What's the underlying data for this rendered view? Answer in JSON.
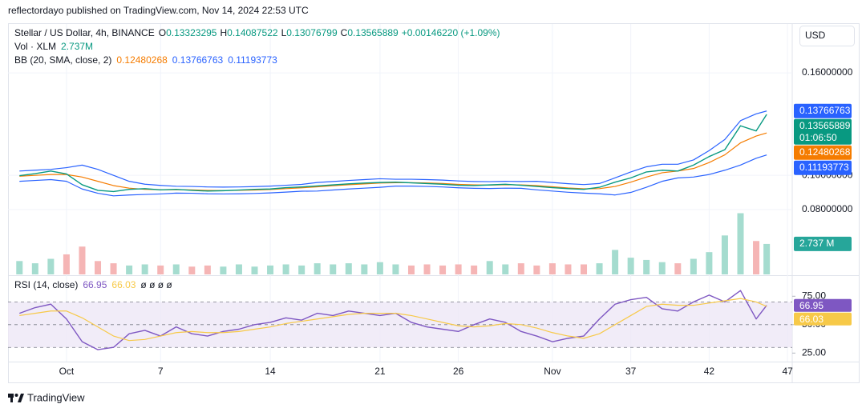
{
  "header": "reflectordayo published on TradingView.com, Nov 14, 2024 22:53 UTC",
  "footer": "TradingView",
  "currency": "USD",
  "countdown": "01:06:50",
  "chart_data": [
    {
      "type": "line",
      "title": "Stellar / US Dollar, 4h, BINANCE",
      "ohlc": [
        {
          "label": "O",
          "value": 0.13323295
        },
        {
          "label": "H",
          "value": 0.14087522
        },
        {
          "label": "L",
          "value": 0.13076799
        },
        {
          "label": "C",
          "value": 0.13565889
        }
      ],
      "change": "+0.00146220 (+1.09%)",
      "grid": true,
      "x": [
        -2,
        -1,
        0,
        1,
        2,
        3,
        4,
        5,
        6,
        7,
        8,
        9,
        10,
        11,
        12,
        13,
        14,
        15,
        16,
        17,
        18,
        19,
        20,
        21,
        22,
        23,
        24,
        25,
        26,
        27,
        28,
        29,
        30,
        31,
        32,
        33,
        34,
        35,
        36,
        37,
        38,
        39,
        40,
        41,
        42,
        43,
        44,
        45,
        45.67
      ],
      "xlim": [
        -2.73,
        47.3
      ],
      "xticks": [
        {
          "value": 1,
          "label": "Oct"
        },
        7,
        14,
        21,
        26,
        {
          "value": 32,
          "label": "Nov"
        },
        37,
        42,
        47
      ],
      "ylim": [
        0.042,
        0.1886
      ],
      "yticks": [
        {
          "value": 0.08,
          "label": "0.08000000"
        },
        {
          "value": 0.1,
          "label": "0.10000000"
        },
        {
          "value": 0.16,
          "label": "0.16000000"
        }
      ],
      "series": [
        {
          "color": "#089981",
          "values": [
            0.0998,
            0.101,
            0.1025,
            0.1008,
            0.0945,
            0.0912,
            0.0905,
            0.0918,
            0.0922,
            0.0915,
            0.0918,
            0.0912,
            0.0908,
            0.091,
            0.0914,
            0.0918,
            0.092,
            0.0928,
            0.0932,
            0.0938,
            0.0944,
            0.095,
            0.0955,
            0.0958,
            0.096,
            0.0956,
            0.0952,
            0.0948,
            0.0942,
            0.094,
            0.0944,
            0.0948,
            0.0942,
            0.0935,
            0.0928,
            0.0922,
            0.0918,
            0.093,
            0.096,
            0.0985,
            0.102,
            0.103,
            0.1025,
            0.106,
            0.111,
            0.115,
            0.129,
            0.126,
            0.13565889
          ]
        }
      ],
      "indicator": {
        "name": "BB (20, SMA, close, 2)",
        "series": [
          {
            "color": "#f57c00",
            "values": [
              0.0995,
              0.1,
              0.1005,
              0.1005,
              0.099,
              0.0965,
              0.094,
              0.0925,
              0.0918,
              0.0916,
              0.0916,
              0.0915,
              0.0912,
              0.0911,
              0.0912,
              0.0914,
              0.0917,
              0.0922,
              0.0927,
              0.0933,
              0.0939,
              0.0945,
              0.095,
              0.0955,
              0.0957,
              0.0957,
              0.0955,
              0.0952,
              0.0947,
              0.0944,
              0.0943,
              0.0945,
              0.0944,
              0.094,
              0.0933,
              0.0926,
              0.0921,
              0.0922,
              0.0935,
              0.096,
              0.099,
              0.1015,
              0.1025,
              0.104,
              0.1075,
              0.112,
              0.119,
              0.123,
              0.12480268
            ]
          },
          {
            "color": "#2962ff",
            "values": [
              0.1025,
              0.103,
              0.1035,
              0.1045,
              0.106,
              0.1035,
              0.1,
              0.0965,
              0.0948,
              0.0941,
              0.0936,
              0.0935,
              0.0932,
              0.0931,
              0.0932,
              0.0934,
              0.0937,
              0.0942,
              0.0947,
              0.0958,
              0.0964,
              0.097,
              0.0975,
              0.098,
              0.0977,
              0.0977,
              0.0975,
              0.0972,
              0.0967,
              0.0964,
              0.0963,
              0.0965,
              0.0964,
              0.0965,
              0.0958,
              0.0951,
              0.0946,
              0.0952,
              0.0985,
              0.102,
              0.105,
              0.1065,
              0.1065,
              0.109,
              0.1145,
              0.121,
              0.132,
              0.136,
              0.13766763
            ]
          },
          {
            "color": "#2962ff",
            "values": [
              0.0965,
              0.097,
              0.0975,
              0.0965,
              0.092,
              0.0895,
              0.088,
              0.0885,
              0.0888,
              0.0891,
              0.0896,
              0.0895,
              0.0892,
              0.0891,
              0.0892,
              0.0894,
              0.0897,
              0.0902,
              0.0907,
              0.0908,
              0.0914,
              0.092,
              0.0925,
              0.093,
              0.0937,
              0.0937,
              0.0935,
              0.0932,
              0.0927,
              0.0924,
              0.0923,
              0.0925,
              0.0924,
              0.0915,
              0.0908,
              0.0901,
              0.0896,
              0.0892,
              0.0885,
              0.09,
              0.093,
              0.0965,
              0.0985,
              0.099,
              0.1005,
              0.103,
              0.106,
              0.11,
              0.11193773
            ]
          }
        ]
      }
    },
    {
      "type": "bar",
      "title": "Vol · XLM",
      "last_label": "2.737M",
      "last_tag": "2.737 M",
      "up_color": "#a5dccf",
      "down_color": "#f5b5b5",
      "tag_color": "#26a69a",
      "ylim": [
        0,
        22.5
      ],
      "values": [
        1.2,
        1.0,
        1.4,
        1.8,
        2.5,
        1.2,
        1.0,
        0.8,
        0.9,
        0.8,
        0.9,
        0.7,
        0.8,
        0.7,
        0.9,
        0.7,
        0.8,
        0.9,
        0.8,
        1.0,
        0.9,
        1.0,
        0.9,
        1.1,
        0.9,
        0.8,
        0.9,
        0.8,
        0.9,
        0.8,
        1.2,
        0.9,
        1.0,
        0.8,
        1.0,
        0.9,
        0.9,
        1.0,
        2.2,
        1.5,
        1.3,
        1.1,
        1.0,
        1.4,
        2.0,
        3.5,
        5.5,
        3.0,
        2.737
      ]
    },
    {
      "type": "line",
      "title": "RSI (14, close)",
      "na_labels": "ø ø ø ø",
      "ylim": [
        17.5,
        92.1
      ],
      "yticks": [
        {
          "value": 75,
          "label": "75.00"
        },
        {
          "value": 50,
          "label": "50.00"
        },
        {
          "value": 25,
          "label": "25.00"
        }
      ],
      "bands": [
        70,
        50,
        30
      ],
      "band_fill": "#ede7f6",
      "series": [
        {
          "color": "#7e57c2",
          "values": [
            60,
            65,
            68,
            55,
            35,
            28,
            30,
            42,
            45,
            40,
            48,
            42,
            40,
            44,
            46,
            50,
            52,
            56,
            54,
            60,
            58,
            62,
            60,
            58,
            60,
            52,
            48,
            46,
            44,
            50,
            55,
            52,
            44,
            40,
            35,
            38,
            40,
            55,
            68,
            72,
            74,
            64,
            62,
            70,
            76,
            70,
            80,
            55,
            66.95
          ]
        },
        {
          "color": "#f7c948",
          "values": [
            58,
            60,
            62,
            62,
            56,
            48,
            40,
            36,
            37,
            40,
            43,
            44,
            43,
            43,
            44,
            46,
            48,
            51,
            53,
            55,
            57,
            59,
            60,
            60,
            60,
            58,
            55,
            52,
            49,
            48,
            49,
            51,
            50,
            47,
            43,
            40,
            38,
            42,
            50,
            58,
            66,
            68,
            67,
            67,
            69,
            71,
            73,
            70,
            66.03
          ]
        }
      ]
    }
  ]
}
